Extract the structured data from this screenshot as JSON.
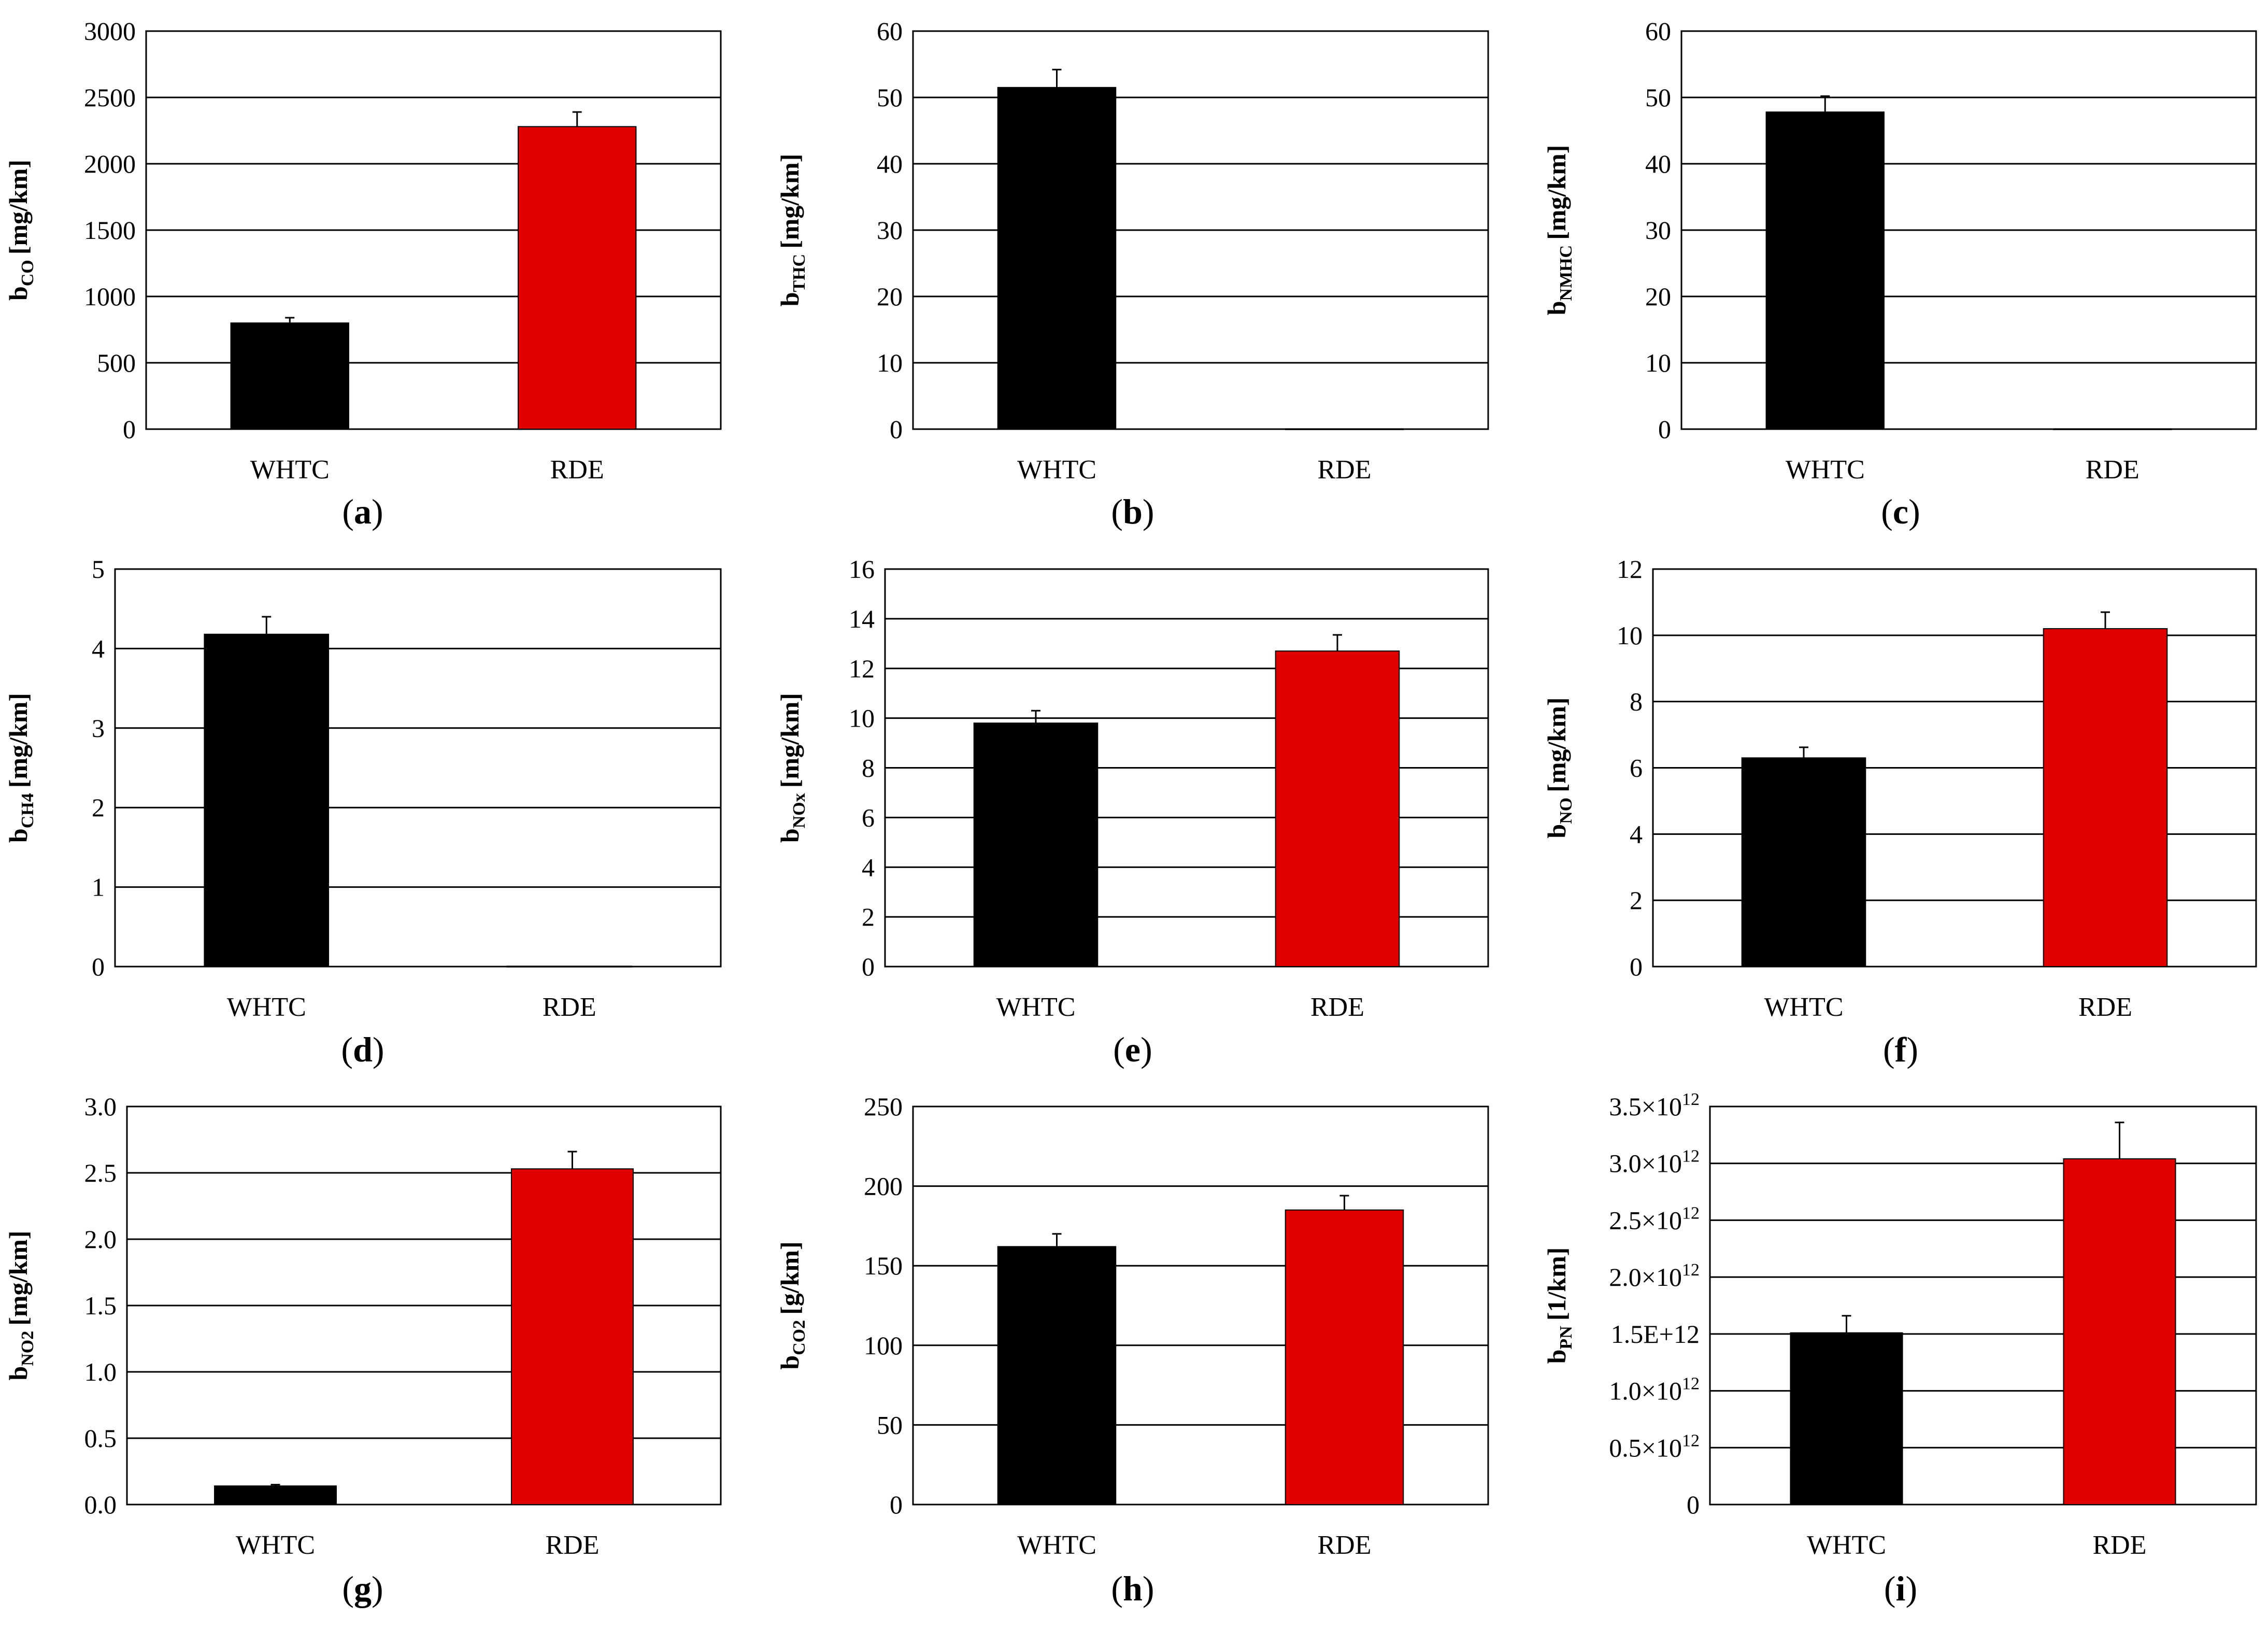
{
  "figure": {
    "colors": {
      "black": "#000000",
      "red": "#e00000",
      "grid": "#000000",
      "axis": "#000000"
    }
  },
  "chart_data": [
    {
      "type": "bar",
      "panel": "a",
      "categories": [
        "WHTC",
        "RDE"
      ],
      "values": [
        800,
        2280
      ],
      "errors": [
        40,
        110
      ],
      "colors": [
        "#000000",
        "#e00000"
      ],
      "ylabel": "b",
      "ylabel_sub": "CO",
      "ylabel_unit": "[mg/km]",
      "ylim": [
        0,
        3000
      ],
      "ticks": [
        0,
        500,
        1000,
        1500,
        2000,
        2500,
        3000
      ],
      "tick_labels": [
        "0",
        "500",
        "1000",
        "1500",
        "2000",
        "2500",
        "3000"
      ]
    },
    {
      "type": "bar",
      "panel": "b",
      "categories": [
        "WHTC",
        "RDE"
      ],
      "values": [
        51.5,
        0.05
      ],
      "errors": [
        2.7,
        0
      ],
      "colors": [
        "#000000",
        "#e00000"
      ],
      "ylabel": "b",
      "ylabel_sub": "THC",
      "ylabel_unit": "[mg/km]",
      "ylim": [
        0,
        60
      ],
      "ticks": [
        0,
        10,
        20,
        30,
        40,
        50,
        60
      ],
      "tick_labels": [
        "0",
        "10",
        "20",
        "30",
        "40",
        "50",
        "60"
      ]
    },
    {
      "type": "bar",
      "panel": "c",
      "categories": [
        "WHTC",
        "RDE"
      ],
      "values": [
        47.8,
        0.05
      ],
      "errors": [
        2.4,
        0
      ],
      "colors": [
        "#000000",
        "#e00000"
      ],
      "ylabel": "b",
      "ylabel_sub": "NMHC",
      "ylabel_unit": "[mg/km]",
      "ylim": [
        0,
        60
      ],
      "ticks": [
        0,
        10,
        20,
        30,
        40,
        50,
        60
      ],
      "tick_labels": [
        "0",
        "10",
        "20",
        "30",
        "40",
        "50",
        "60"
      ]
    },
    {
      "type": "bar",
      "panel": "d",
      "categories": [
        "WHTC",
        "RDE"
      ],
      "values": [
        4.18,
        0.005
      ],
      "errors": [
        0.22,
        0
      ],
      "colors": [
        "#000000",
        "#e00000"
      ],
      "ylabel": "b",
      "ylabel_sub": "CH4",
      "ylabel_unit": "[mg/km]",
      "ylim": [
        0,
        5
      ],
      "ticks": [
        0,
        1,
        2,
        3,
        4,
        5
      ],
      "tick_labels": [
        "0",
        "1",
        "2",
        "3",
        "4",
        "5"
      ]
    },
    {
      "type": "bar",
      "panel": "e",
      "categories": [
        "WHTC",
        "RDE"
      ],
      "values": [
        9.8,
        12.7
      ],
      "errors": [
        0.5,
        0.65
      ],
      "colors": [
        "#000000",
        "#e00000"
      ],
      "ylabel": "b",
      "ylabel_sub": "NOx",
      "ylabel_unit": "[mg/km]",
      "ylim": [
        0,
        16
      ],
      "ticks": [
        0,
        2,
        4,
        6,
        8,
        10,
        12,
        14,
        16
      ],
      "tick_labels": [
        "0",
        "2",
        "4",
        "6",
        "8",
        "10",
        "12",
        "14",
        "16"
      ]
    },
    {
      "type": "bar",
      "panel": "f",
      "categories": [
        "WHTC",
        "RDE"
      ],
      "values": [
        6.3,
        10.2
      ],
      "errors": [
        0.32,
        0.5
      ],
      "colors": [
        "#000000",
        "#e00000"
      ],
      "ylabel": "b",
      "ylabel_sub": "NO",
      "ylabel_unit": "[mg/km]",
      "ylim": [
        0,
        12
      ],
      "ticks": [
        0,
        2,
        4,
        6,
        8,
        10,
        12
      ],
      "tick_labels": [
        "0",
        "2",
        "4",
        "6",
        "8",
        "10",
        "12"
      ]
    },
    {
      "type": "bar",
      "panel": "g",
      "categories": [
        "WHTC",
        "RDE"
      ],
      "values": [
        0.14,
        2.53
      ],
      "errors": [
        0.01,
        0.13
      ],
      "colors": [
        "#000000",
        "#e00000"
      ],
      "ylabel": "b",
      "ylabel_sub": "NO2",
      "ylabel_unit": "[mg/km]",
      "ylim": [
        0,
        3.0
      ],
      "ticks": [
        0,
        0.5,
        1.0,
        1.5,
        2.0,
        2.5,
        3.0
      ],
      "tick_labels": [
        "0.0",
        "0.5",
        "1.0",
        "1.5",
        "2.0",
        "2.5",
        "3.0"
      ]
    },
    {
      "type": "bar",
      "panel": "h",
      "categories": [
        "WHTC",
        "RDE"
      ],
      "values": [
        162,
        185
      ],
      "errors": [
        8,
        9
      ],
      "colors": [
        "#000000",
        "#e00000"
      ],
      "ylabel": "b",
      "ylabel_sub": "CO2",
      "ylabel_unit": "[g/km]",
      "ylim": [
        0,
        250
      ],
      "ticks": [
        0,
        50,
        100,
        150,
        200,
        250
      ],
      "tick_labels": [
        "0",
        "50",
        "100",
        "150",
        "200",
        "250"
      ]
    },
    {
      "type": "bar",
      "panel": "i",
      "categories": [
        "WHTC",
        "RDE"
      ],
      "values": [
        1510000000000.0,
        3040000000000.0
      ],
      "errors": [
        150000000000.0,
        320000000000.0
      ],
      "colors": [
        "#000000",
        "#e00000"
      ],
      "ylabel": "b",
      "ylabel_sub": "PN",
      "ylabel_unit": "[1/km]",
      "ylim": [
        0,
        3500000000000.0
      ],
      "ticks": [
        0,
        500000000000.0,
        1000000000000.0,
        1500000000000.0,
        2000000000000.0,
        2500000000000.0,
        3000000000000.0,
        3500000000000.0
      ],
      "tick_labels": [
        "0",
        "0.5×10",
        "1.0×10",
        "1.5E+12",
        "2.0×10",
        "2.5×10",
        "3.0×10",
        "3.5×10"
      ],
      "tick_exponents": [
        "",
        "12",
        "12",
        "",
        "12",
        "12",
        "12",
        "12"
      ]
    }
  ]
}
